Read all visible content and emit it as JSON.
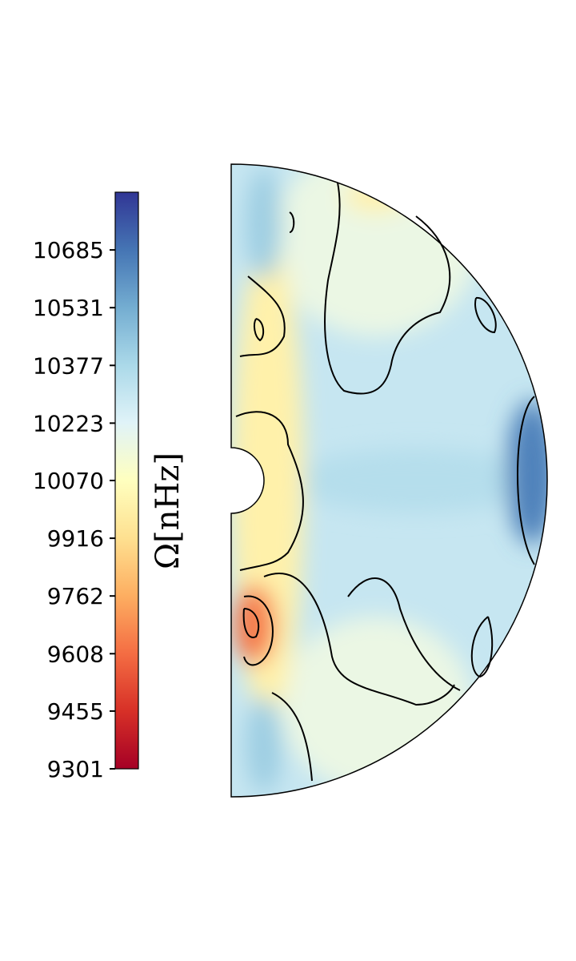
{
  "chart_data": {
    "type": "heatmap",
    "description_kind": "meridional slice contour map",
    "colormap": "RdYlBu",
    "colorbar": {
      "label": "Ω[nHz]",
      "orientation": "vertical",
      "side": "left",
      "vmin": 9301,
      "vmax": 10839,
      "ticks": [
        10685,
        10531,
        10377,
        10223,
        10070,
        9916,
        9762,
        9608,
        9455,
        9301
      ],
      "tick_labels": [
        "10685",
        "10531",
        "10377",
        "10223",
        "10070",
        "9916",
        "9762",
        "9608",
        "9455",
        "9301"
      ],
      "colors": [
        "#a50026",
        "#d73027",
        "#f46d43",
        "#fdae61",
        "#fee090",
        "#ffffbf",
        "#e0f3f8",
        "#abd9e9",
        "#74add1",
        "#4575b4",
        "#313695"
      ]
    },
    "field": {
      "domain": "half-annulus (meridional plane)",
      "background_level": 10300,
      "features": [
        {
          "region": "equator, outer boundary",
          "value": 10650
        },
        {
          "region": "inner core region near axis, southern mid-latitude",
          "value": 9640
        },
        {
          "region": "near rotation axis, band",
          "value": 10000
        },
        {
          "region": "equatorial band",
          "value": 10350
        },
        {
          "region": "high-latitude outer region",
          "value": 10170
        }
      ]
    }
  }
}
